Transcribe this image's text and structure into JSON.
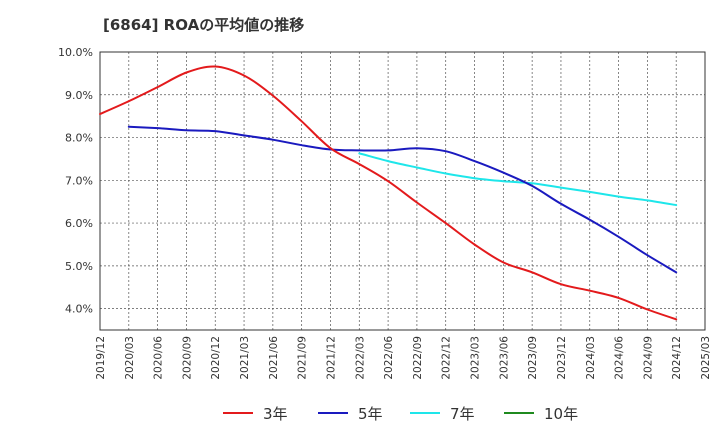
{
  "title": "[6864]  ROAの平均値の推移",
  "chart_data": {
    "type": "line",
    "title": "[6864]  ROAの平均値の推移",
    "xlabel": "",
    "ylabel": "",
    "ylim": [
      3.5,
      10.0
    ],
    "y_ticks": [
      "4.0%",
      "5.0%",
      "6.0%",
      "7.0%",
      "8.0%",
      "9.0%",
      "10.0%"
    ],
    "y_tick_values": [
      4.0,
      5.0,
      6.0,
      7.0,
      8.0,
      9.0,
      10.0
    ],
    "x_ticks": [
      "2019/12",
      "2020/03",
      "2020/06",
      "2020/09",
      "2020/12",
      "2021/03",
      "2021/06",
      "2021/09",
      "2021/12",
      "2022/03",
      "2022/06",
      "2022/09",
      "2022/12",
      "2023/03",
      "2023/06",
      "2023/09",
      "2023/12",
      "2024/03",
      "2024/06",
      "2024/09",
      "2024/12",
      "2025/03"
    ],
    "grid": true,
    "legend_position": "bottom",
    "series": [
      {
        "name": "3年",
        "color": "#e31a1c",
        "points": [
          [
            "2019/12",
            8.55
          ],
          [
            "2020/03",
            8.85
          ],
          [
            "2020/06",
            9.18
          ],
          [
            "2020/09",
            9.52
          ],
          [
            "2020/12",
            9.66
          ],
          [
            "2021/03",
            9.45
          ],
          [
            "2021/06",
            8.98
          ],
          [
            "2021/09",
            8.38
          ],
          [
            "2021/12",
            7.75
          ],
          [
            "2022/03",
            7.38
          ],
          [
            "2022/06",
            6.98
          ],
          [
            "2022/09",
            6.48
          ],
          [
            "2022/12",
            6.0
          ],
          [
            "2023/03",
            5.5
          ],
          [
            "2023/06",
            5.08
          ],
          [
            "2023/09",
            4.85
          ],
          [
            "2023/12",
            4.57
          ],
          [
            "2024/03",
            4.42
          ],
          [
            "2024/06",
            4.25
          ],
          [
            "2024/09",
            3.98
          ],
          [
            "2024/12",
            3.75
          ]
        ]
      },
      {
        "name": "5年",
        "color": "#1a1abf",
        "points": [
          [
            "2020/03",
            8.25
          ],
          [
            "2020/06",
            8.22
          ],
          [
            "2020/09",
            8.17
          ],
          [
            "2020/12",
            8.15
          ],
          [
            "2021/03",
            8.05
          ],
          [
            "2021/06",
            7.95
          ],
          [
            "2021/09",
            7.82
          ],
          [
            "2021/12",
            7.72
          ],
          [
            "2022/03",
            7.7
          ],
          [
            "2022/06",
            7.7
          ],
          [
            "2022/09",
            7.75
          ],
          [
            "2022/12",
            7.68
          ],
          [
            "2023/03",
            7.45
          ],
          [
            "2023/06",
            7.18
          ],
          [
            "2023/09",
            6.87
          ],
          [
            "2023/12",
            6.45
          ],
          [
            "2024/03",
            6.08
          ],
          [
            "2024/06",
            5.68
          ],
          [
            "2024/09",
            5.25
          ],
          [
            "2024/12",
            4.85
          ]
        ]
      },
      {
        "name": "7年",
        "color": "#1ee6ea",
        "points": [
          [
            "2022/03",
            7.63
          ],
          [
            "2022/06",
            7.45
          ],
          [
            "2022/09",
            7.3
          ],
          [
            "2022/12",
            7.16
          ],
          [
            "2023/03",
            7.05
          ],
          [
            "2023/06",
            6.98
          ],
          [
            "2023/09",
            6.93
          ],
          [
            "2023/12",
            6.83
          ],
          [
            "2024/03",
            6.73
          ],
          [
            "2024/06",
            6.62
          ],
          [
            "2024/09",
            6.53
          ],
          [
            "2024/12",
            6.42
          ]
        ]
      },
      {
        "name": "10年",
        "color": "#1f8a1f",
        "points": []
      }
    ]
  }
}
